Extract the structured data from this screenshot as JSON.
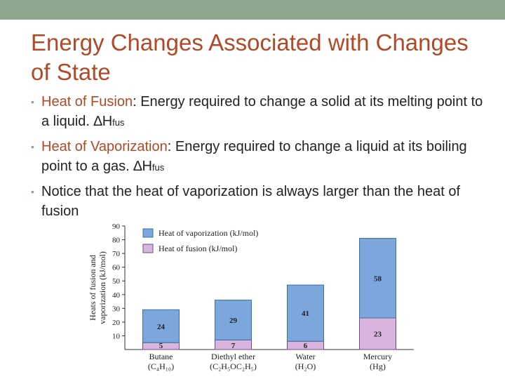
{
  "colors": {
    "accent": "#b24926",
    "bar_teal": "#8ea68e",
    "vaporization": "#7ba7dc",
    "fusion": "#d9b4dc"
  },
  "slide": {
    "title": "Energy Changes Associated with Changes of State",
    "bullets": [
      {
        "term": "Heat of Fusion",
        "text": ": Energy required to change a solid at its melting point to a liquid. ∆H",
        "sub": "fus"
      },
      {
        "term": "Heat of Vaporization",
        "text": ": Energy required to change a liquid at its boiling point to a gas. ∆H",
        "sub": "fus"
      },
      {
        "term": "",
        "text": "Notice that the heat of vaporization is always larger than the heat of fusion",
        "sub": ""
      }
    ]
  },
  "chart_data": {
    "type": "bar",
    "stacked": true,
    "categories": [
      "Butane",
      "Diethyl ether",
      "Water",
      "Mercury"
    ],
    "category_formulas": [
      "(C₄H₁₀)",
      "(C₂H₅OC₂H₅)",
      "(H₂O)",
      "(Hg)"
    ],
    "series": [
      {
        "name": "Heat of fusion (kJ/mol)",
        "values": [
          5,
          7,
          6,
          23
        ],
        "color": "#d9b4dc"
      },
      {
        "name": "Heat of vaporization (kJ/mol)",
        "values": [
          24,
          29,
          41,
          58
        ],
        "color": "#7ba7dc"
      }
    ],
    "ylabel_line1": "Heats of fusion and",
    "ylabel_line2": "vaporization (kJ/mol)",
    "ylim": [
      0,
      90
    ],
    "yticks": [
      10,
      20,
      30,
      40,
      50,
      60,
      70,
      80,
      90
    ],
    "legend": "top-left",
    "grid": false
  }
}
